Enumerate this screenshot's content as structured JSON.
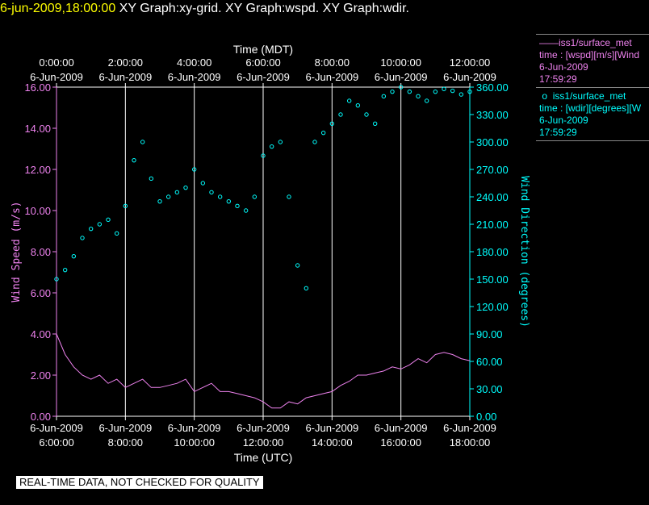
{
  "header": {
    "timestamp": "6-jun-2009,18:00:00",
    "titles": "XY Graph:xy-grid.  XY Graph:wspd.  XY Graph:wdir."
  },
  "colors": {
    "wspd": "#ee82ee",
    "wdir": "#00ffff",
    "grid": "#ffffff",
    "background": "#000000"
  },
  "legend": [
    {
      "line1": "iss1/surface_met",
      "line2": "time : [wspd][m/s][Wind",
      "line3": "6-Jun-2009",
      "line4": "17:59:29"
    },
    {
      "line1": "iss1/surface_met",
      "line2": "time : [wdir][degrees][W",
      "line3": "6-Jun-2009",
      "line4": "17:59:29"
    }
  ],
  "banner": "REAL-TIME DATA, NOT CHECKED FOR QUALITY",
  "chart_data": {
    "type": "line",
    "top_axis": {
      "label": "Time (MDT)",
      "ticks": [
        {
          "date": "6-Jun-2009",
          "time": "0:00:00"
        },
        {
          "date": "6-Jun-2009",
          "time": "2:00:00"
        },
        {
          "date": "6-Jun-2009",
          "time": "4:00:00"
        },
        {
          "date": "6-Jun-2009",
          "time": "6:00:00"
        },
        {
          "date": "6-Jun-2009",
          "time": "8:00:00"
        },
        {
          "date": "6-Jun-2009",
          "time": "10:00:00"
        },
        {
          "date": "6-Jun-2009",
          "time": "12:00:00"
        }
      ]
    },
    "bottom_axis": {
      "label": "Time (UTC)",
      "ticks": [
        {
          "date": "6-Jun-2009",
          "time": "6:00:00"
        },
        {
          "date": "6-Jun-2009",
          "time": "8:00:00"
        },
        {
          "date": "6-Jun-2009",
          "time": "10:00:00"
        },
        {
          "date": "6-Jun-2009",
          "time": "12:00:00"
        },
        {
          "date": "6-Jun-2009",
          "time": "14:00:00"
        },
        {
          "date": "6-Jun-2009",
          "time": "16:00:00"
        },
        {
          "date": "6-Jun-2009",
          "time": "18:00:00"
        }
      ],
      "xlim_hours_utc": [
        6,
        18
      ]
    },
    "left_axis": {
      "label": "Wind Speed (m/s)",
      "ylim": [
        0,
        16
      ],
      "tick_labels": [
        "0.00",
        "2.00",
        "4.00",
        "6.00",
        "8.00",
        "10.00",
        "12.00",
        "14.00",
        "16.00"
      ]
    },
    "right_axis": {
      "label": "Wind Direction (degrees)",
      "ylim": [
        0,
        360
      ],
      "tick_labels": [
        "0.00",
        "30.00",
        "60.00",
        "90.00",
        "120.00",
        "150.00",
        "180.00",
        "210.00",
        "240.00",
        "270.00",
        "300.00",
        "330.00",
        "360.00"
      ]
    },
    "grid": "vertical lines at major time ticks",
    "series": [
      {
        "name": "iss1/surface_met wspd",
        "style": "line",
        "axis": "left",
        "x_hours_utc": [
          6.0,
          6.25,
          6.5,
          6.75,
          7.0,
          7.25,
          7.5,
          7.75,
          8.0,
          8.25,
          8.5,
          8.75,
          9.0,
          9.25,
          9.5,
          9.75,
          10.0,
          10.25,
          10.5,
          10.75,
          11.0,
          11.25,
          11.5,
          11.75,
          12.0,
          12.25,
          12.5,
          12.75,
          13.0,
          13.25,
          13.5,
          13.75,
          14.0,
          14.25,
          14.5,
          14.75,
          15.0,
          15.25,
          15.5,
          15.75,
          16.0,
          16.25,
          16.5,
          16.75,
          17.0,
          17.25,
          17.5,
          17.75,
          18.0
        ],
        "values": [
          4.0,
          3.0,
          2.4,
          2.0,
          1.8,
          2.0,
          1.6,
          1.8,
          1.4,
          1.6,
          1.8,
          1.4,
          1.4,
          1.5,
          1.6,
          1.8,
          1.2,
          1.4,
          1.6,
          1.2,
          1.2,
          1.1,
          1.0,
          0.9,
          0.7,
          0.4,
          0.4,
          0.7,
          0.6,
          0.9,
          1.0,
          1.1,
          1.2,
          1.5,
          1.7,
          2.0,
          2.0,
          2.1,
          2.2,
          2.4,
          2.3,
          2.5,
          2.8,
          2.6,
          3.0,
          3.1,
          3.0,
          2.8,
          2.7
        ]
      },
      {
        "name": "iss1/surface_met wdir",
        "style": "scatter",
        "axis": "right",
        "x_hours_utc": [
          6.0,
          6.25,
          6.5,
          6.75,
          7.0,
          7.25,
          7.5,
          7.75,
          8.0,
          8.25,
          8.5,
          8.75,
          9.0,
          9.25,
          9.5,
          9.75,
          10.0,
          10.25,
          10.5,
          10.75,
          11.0,
          11.25,
          11.5,
          11.75,
          12.0,
          12.25,
          12.5,
          12.75,
          13.0,
          13.25,
          13.5,
          13.75,
          14.0,
          14.25,
          14.5,
          14.75,
          15.0,
          15.25,
          15.5,
          15.75,
          16.0,
          16.25,
          16.5,
          16.75,
          17.0,
          17.25,
          17.5,
          17.75,
          18.0
        ],
        "values": [
          150,
          160,
          175,
          195,
          205,
          210,
          215,
          200,
          230,
          280,
          300,
          260,
          235,
          240,
          245,
          250,
          270,
          255,
          245,
          240,
          235,
          230,
          225,
          240,
          285,
          295,
          300,
          240,
          165,
          140,
          300,
          310,
          320,
          330,
          345,
          340,
          330,
          320,
          350,
          355,
          360,
          355,
          350,
          345,
          355,
          358,
          356,
          352,
          355
        ]
      }
    ]
  }
}
